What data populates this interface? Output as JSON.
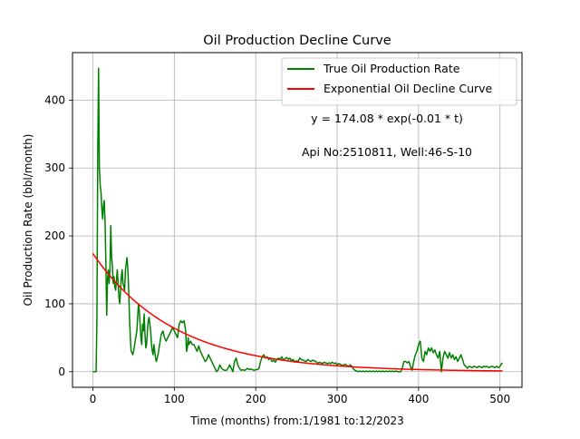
{
  "chart_data": {
    "type": "line",
    "title": "Oil Production Decline Curve",
    "xlabel": "Time (months) from:1/1981 to:12/2023",
    "ylabel": "Oil Production Rate (bbl/month)",
    "xlim": [
      -25,
      527
    ],
    "ylim": [
      -23,
      470
    ],
    "xticks": [
      0,
      100,
      200,
      300,
      400,
      500
    ],
    "yticks": [
      0,
      100,
      200,
      300,
      400
    ],
    "grid": true,
    "legend_position": "top-right",
    "annotations": [
      "y = 174.08 * exp(-0.01 * t)",
      "Api No:2510811, Well:46-S-10"
    ],
    "series": [
      {
        "name": "True Oil Production Rate",
        "color": "#008000",
        "points": [
          [
            0,
            0
          ],
          [
            3,
            0
          ],
          [
            4,
            0
          ],
          [
            5,
            80
          ],
          [
            6,
            320
          ],
          [
            7,
            447
          ],
          [
            8,
            300
          ],
          [
            9,
            275
          ],
          [
            10,
            265
          ],
          [
            11,
            240
          ],
          [
            12,
            225
          ],
          [
            13,
            245
          ],
          [
            14,
            252
          ],
          [
            15,
            220
          ],
          [
            16,
            160
          ],
          [
            17,
            83
          ],
          [
            18,
            135
          ],
          [
            19,
            150
          ],
          [
            20,
            130
          ],
          [
            21,
            150
          ],
          [
            22,
            215
          ],
          [
            23,
            170
          ],
          [
            24,
            155
          ],
          [
            25,
            130
          ],
          [
            26,
            140
          ],
          [
            27,
            125
          ],
          [
            28,
            120
          ],
          [
            29,
            135
          ],
          [
            30,
            150
          ],
          [
            31,
            130
          ],
          [
            32,
            110
          ],
          [
            33,
            100
          ],
          [
            34,
            120
          ],
          [
            35,
            140
          ],
          [
            36,
            150
          ],
          [
            37,
            130
          ],
          [
            38,
            125
          ],
          [
            39,
            120
          ],
          [
            40,
            150
          ],
          [
            41,
            160
          ],
          [
            42,
            168
          ],
          [
            43,
            150
          ],
          [
            44,
            120
          ],
          [
            45,
            80
          ],
          [
            46,
            50
          ],
          [
            47,
            30
          ],
          [
            48,
            28
          ],
          [
            49,
            25
          ],
          [
            50,
            30
          ],
          [
            52,
            45
          ],
          [
            54,
            60
          ],
          [
            55,
            80
          ],
          [
            56,
            100
          ],
          [
            57,
            90
          ],
          [
            58,
            70
          ],
          [
            59,
            50
          ],
          [
            60,
            40
          ],
          [
            61,
            70
          ],
          [
            62,
            60
          ],
          [
            63,
            85
          ],
          [
            64,
            55
          ],
          [
            65,
            35
          ],
          [
            66,
            40
          ],
          [
            67,
            60
          ],
          [
            68,
            75
          ],
          [
            69,
            80
          ],
          [
            70,
            70
          ],
          [
            71,
            60
          ],
          [
            72,
            40
          ],
          [
            73,
            30
          ],
          [
            74,
            25
          ],
          [
            75,
            40
          ],
          [
            76,
            30
          ],
          [
            77,
            20
          ],
          [
            78,
            15
          ],
          [
            80,
            25
          ],
          [
            82,
            40
          ],
          [
            84,
            55
          ],
          [
            86,
            60
          ],
          [
            88,
            50
          ],
          [
            90,
            45
          ],
          [
            92,
            50
          ],
          [
            94,
            55
          ],
          [
            96,
            60
          ],
          [
            98,
            65
          ],
          [
            100,
            60
          ],
          [
            102,
            55
          ],
          [
            104,
            50
          ],
          [
            106,
            70
          ],
          [
            108,
            75
          ],
          [
            110,
            72
          ],
          [
            112,
            75
          ],
          [
            114,
            60
          ],
          [
            115,
            30
          ],
          [
            116,
            35
          ],
          [
            117,
            50
          ],
          [
            118,
            40
          ],
          [
            120,
            45
          ],
          [
            122,
            40
          ],
          [
            124,
            40
          ],
          [
            126,
            35
          ],
          [
            128,
            30
          ],
          [
            130,
            38
          ],
          [
            132,
            30
          ],
          [
            134,
            25
          ],
          [
            136,
            20
          ],
          [
            138,
            15
          ],
          [
            140,
            18
          ],
          [
            142,
            25
          ],
          [
            144,
            20
          ],
          [
            146,
            15
          ],
          [
            148,
            10
          ],
          [
            150,
            5
          ],
          [
            152,
            0
          ],
          [
            154,
            3
          ],
          [
            156,
            10
          ],
          [
            158,
            5
          ],
          [
            160,
            3
          ],
          [
            162,
            2
          ],
          [
            164,
            2
          ],
          [
            166,
            5
          ],
          [
            168,
            10
          ],
          [
            170,
            5
          ],
          [
            172,
            0
          ],
          [
            174,
            15
          ],
          [
            176,
            20
          ],
          [
            178,
            10
          ],
          [
            180,
            5
          ],
          [
            182,
            2
          ],
          [
            184,
            3
          ],
          [
            186,
            2
          ],
          [
            188,
            3
          ],
          [
            190,
            5
          ],
          [
            192,
            3
          ],
          [
            194,
            4
          ],
          [
            196,
            3
          ],
          [
            198,
            2
          ],
          [
            200,
            3
          ],
          [
            202,
            3
          ],
          [
            204,
            5
          ],
          [
            206,
            15
          ],
          [
            208,
            22
          ],
          [
            210,
            25
          ],
          [
            212,
            20
          ],
          [
            214,
            22
          ],
          [
            216,
            18
          ],
          [
            218,
            20
          ],
          [
            220,
            15
          ],
          [
            222,
            17
          ],
          [
            224,
            14
          ],
          [
            226,
            18
          ],
          [
            228,
            20
          ],
          [
            230,
            18
          ],
          [
            232,
            22
          ],
          [
            234,
            17
          ],
          [
            236,
            19
          ],
          [
            238,
            21
          ],
          [
            240,
            18
          ],
          [
            242,
            20
          ],
          [
            244,
            16
          ],
          [
            246,
            18
          ],
          [
            248,
            14
          ],
          [
            250,
            16
          ],
          [
            252,
            15
          ],
          [
            254,
            20
          ],
          [
            256,
            18
          ],
          [
            258,
            17
          ],
          [
            260,
            16
          ],
          [
            262,
            15
          ],
          [
            264,
            18
          ],
          [
            266,
            16
          ],
          [
            268,
            15
          ],
          [
            270,
            17
          ],
          [
            272,
            16
          ],
          [
            274,
            15
          ],
          [
            276,
            12
          ],
          [
            278,
            14
          ],
          [
            280,
            13
          ],
          [
            282,
            12
          ],
          [
            284,
            14
          ],
          [
            286,
            13
          ],
          [
            288,
            12
          ],
          [
            290,
            13
          ],
          [
            292,
            12
          ],
          [
            294,
            14
          ],
          [
            296,
            12
          ],
          [
            298,
            13
          ],
          [
            300,
            10
          ],
          [
            302,
            12
          ],
          [
            304,
            11
          ],
          [
            306,
            9
          ],
          [
            308,
            10
          ],
          [
            310,
            11
          ],
          [
            312,
            9
          ],
          [
            314,
            8
          ],
          [
            316,
            10
          ],
          [
            318,
            8
          ],
          [
            320,
            4
          ],
          [
            322,
            2
          ],
          [
            324,
            1
          ],
          [
            326,
            0
          ],
          [
            328,
            1
          ],
          [
            330,
            0
          ],
          [
            332,
            1
          ],
          [
            334,
            0
          ],
          [
            336,
            1
          ],
          [
            338,
            0
          ],
          [
            340,
            1
          ],
          [
            342,
            0
          ],
          [
            344,
            1
          ],
          [
            346,
            0
          ],
          [
            348,
            1
          ],
          [
            350,
            0
          ],
          [
            352,
            1
          ],
          [
            354,
            0
          ],
          [
            356,
            1
          ],
          [
            358,
            0
          ],
          [
            360,
            1
          ],
          [
            362,
            0
          ],
          [
            364,
            1
          ],
          [
            366,
            0
          ],
          [
            368,
            1
          ],
          [
            370,
            0
          ],
          [
            372,
            1
          ],
          [
            374,
            0
          ],
          [
            376,
            0
          ],
          [
            378,
            0
          ],
          [
            380,
            5
          ],
          [
            382,
            15
          ],
          [
            384,
            15
          ],
          [
            386,
            13
          ],
          [
            388,
            15
          ],
          [
            390,
            8
          ],
          [
            392,
            2
          ],
          [
            394,
            15
          ],
          [
            396,
            25
          ],
          [
            398,
            30
          ],
          [
            400,
            40
          ],
          [
            402,
            45
          ],
          [
            404,
            20
          ],
          [
            406,
            15
          ],
          [
            408,
            30
          ],
          [
            410,
            25
          ],
          [
            412,
            35
          ],
          [
            414,
            30
          ],
          [
            416,
            35
          ],
          [
            418,
            28
          ],
          [
            420,
            32
          ],
          [
            422,
            25
          ],
          [
            424,
            20
          ],
          [
            426,
            30
          ],
          [
            428,
            0
          ],
          [
            430,
            20
          ],
          [
            432,
            30
          ],
          [
            434,
            25
          ],
          [
            436,
            20
          ],
          [
            438,
            28
          ],
          [
            440,
            20
          ],
          [
            442,
            25
          ],
          [
            444,
            18
          ],
          [
            446,
            22
          ],
          [
            448,
            15
          ],
          [
            450,
            20
          ],
          [
            452,
            25
          ],
          [
            454,
            18
          ],
          [
            456,
            10
          ],
          [
            458,
            8
          ],
          [
            460,
            5
          ],
          [
            462,
            8
          ],
          [
            464,
            7
          ],
          [
            466,
            6
          ],
          [
            468,
            8
          ],
          [
            470,
            7
          ],
          [
            472,
            6
          ],
          [
            474,
            8
          ],
          [
            476,
            7
          ],
          [
            478,
            6
          ],
          [
            480,
            8
          ],
          [
            482,
            7
          ],
          [
            484,
            8
          ],
          [
            486,
            6
          ],
          [
            488,
            7
          ],
          [
            490,
            8
          ],
          [
            492,
            7
          ],
          [
            494,
            6
          ],
          [
            496,
            8
          ],
          [
            498,
            6
          ],
          [
            500,
            8
          ],
          [
            502,
            12
          ],
          [
            503,
            13
          ]
        ]
      },
      {
        "name": "Exponential Oil Decline Curve",
        "color": "#ff0000",
        "function": {
          "a": 174.08,
          "b": 0.01,
          "x_from": 0,
          "x_to": 503
        }
      }
    ]
  }
}
